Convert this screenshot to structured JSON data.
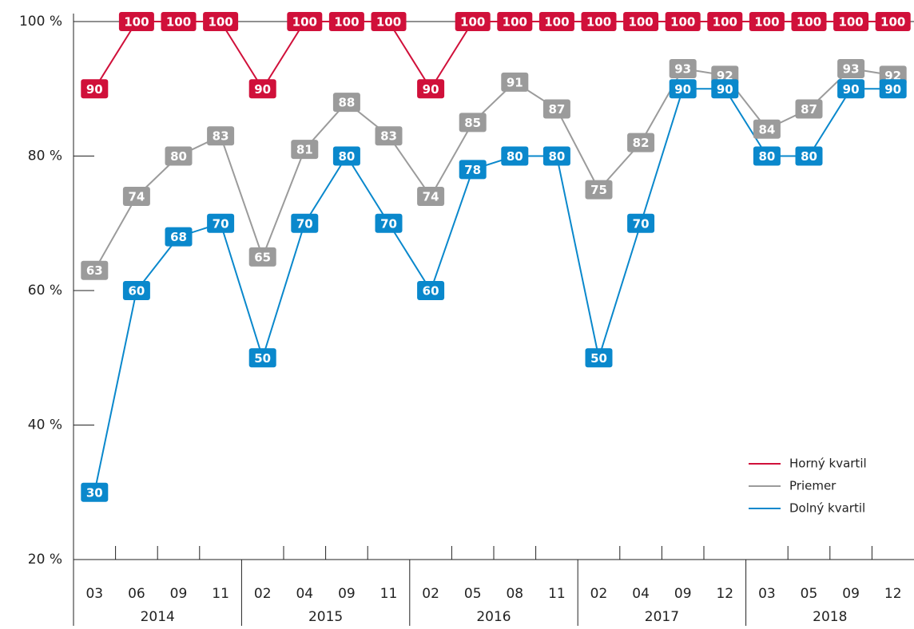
{
  "chart_data": {
    "type": "line",
    "categories": [
      "03",
      "06",
      "09",
      "11",
      "02",
      "04",
      "09",
      "11",
      "02",
      "05",
      "08",
      "11",
      "02",
      "04",
      "09",
      "12",
      "03",
      "05",
      "09",
      "12"
    ],
    "groups": [
      "2014",
      "2015",
      "2016",
      "2017",
      "2018"
    ],
    "series": [
      {
        "name": "Horný kvartil",
        "color": "#d0103a",
        "values": [
          90,
          100,
          100,
          100,
          90,
          100,
          100,
          100,
          90,
          100,
          100,
          100,
          100,
          100,
          100,
          100,
          100,
          100,
          100,
          100
        ]
      },
      {
        "name": "Priemer",
        "color": "#9b9b9b",
        "values": [
          63,
          74,
          80,
          83,
          65,
          81,
          88,
          83,
          74,
          85,
          91,
          87,
          75,
          82,
          93,
          92,
          84,
          87,
          93,
          92
        ]
      },
      {
        "name": "Dolný kvartil",
        "color": "#0a88cc",
        "values": [
          30,
          60,
          68,
          70,
          50,
          70,
          80,
          70,
          60,
          78,
          80,
          80,
          50,
          70,
          90,
          90,
          80,
          80,
          90,
          90
        ]
      }
    ],
    "ylim": [
      20,
      100
    ],
    "yticks": [
      {
        "value": 20,
        "label": "20 %"
      },
      {
        "value": 40,
        "label": "40 %"
      },
      {
        "value": 60,
        "label": "60 %"
      },
      {
        "value": 80,
        "label": "80 %"
      },
      {
        "value": 100,
        "label": "100 %"
      }
    ],
    "legend": "lower right"
  }
}
